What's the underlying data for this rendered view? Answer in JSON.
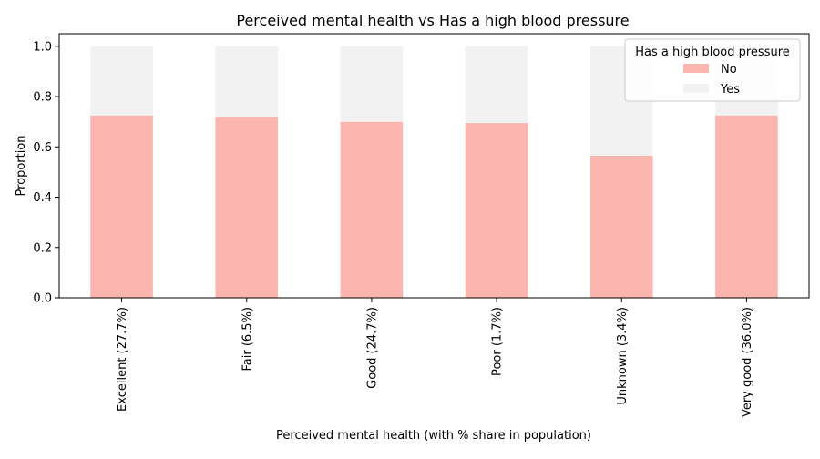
{
  "chart_data": {
    "type": "bar",
    "stacked": true,
    "title": "Perceived mental health  vs Has a high blood pressure",
    "xlabel": "Perceived mental health  (with % share in population)",
    "ylabel": "Proportion",
    "ylim": [
      0,
      1.05
    ],
    "yticks": [
      0.0,
      0.2,
      0.4,
      0.6,
      0.8,
      1.0
    ],
    "ytick_labels": [
      "0.0",
      "0.2",
      "0.4",
      "0.6",
      "0.8",
      "1.0"
    ],
    "categories": [
      "Excellent (27.7%)",
      "Fair (6.5%)",
      "Good (24.7%)",
      "Poor (1.7%)",
      "Unknown (3.4%)",
      "Very good (36.0%)"
    ],
    "series": [
      {
        "name": "No",
        "color": "#fbb4ae",
        "values": [
          0.725,
          0.72,
          0.7,
          0.695,
          0.565,
          0.725
        ]
      },
      {
        "name": "Yes",
        "color": "#f2f2f2",
        "values": [
          0.275,
          0.28,
          0.3,
          0.305,
          0.435,
          0.275
        ]
      }
    ],
    "legend": {
      "title": "Has a high blood pressure",
      "position": "top-right"
    },
    "grid": false
  }
}
